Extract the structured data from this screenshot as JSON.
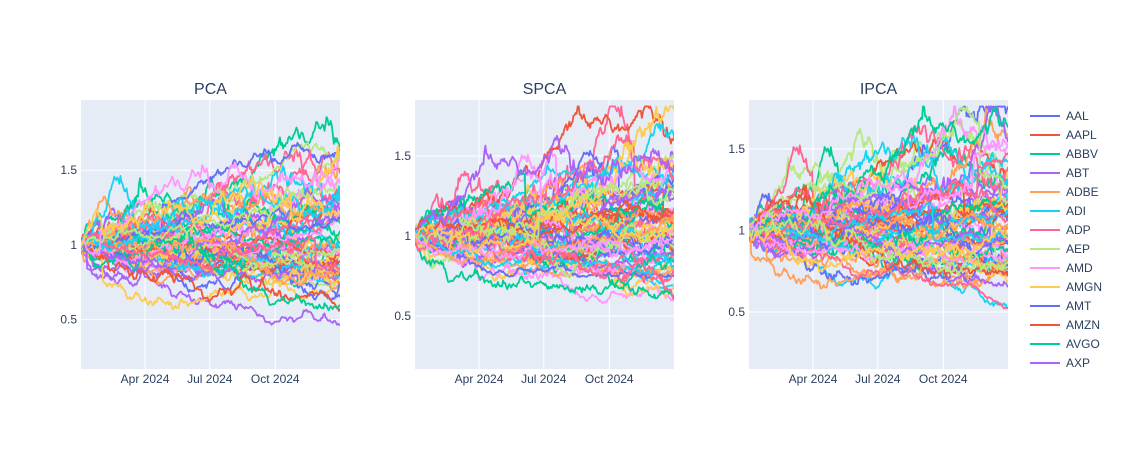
{
  "chart_data": {
    "type": "line",
    "subplots": [
      {
        "title": "PCA",
        "xticks": [
          "Apr 2024",
          "Jul 2024",
          "Oct 2024"
        ],
        "yticks": [
          "0.5",
          "1",
          "1.5"
        ],
        "ylim": [
          0.17,
          1.97
        ],
        "xlim": [
          "2024-01-02",
          "2024-12-31"
        ]
      },
      {
        "title": "SPCA",
        "xticks": [
          "Apr 2024",
          "Jul 2024",
          "Oct 2024"
        ],
        "yticks": [
          "0.5",
          "1",
          "1.5"
        ],
        "ylim": [
          0.17,
          1.85
        ],
        "xlim": [
          "2024-01-02",
          "2024-12-31"
        ]
      },
      {
        "title": "IPCA",
        "xticks": [
          "Apr 2024",
          "Jul 2024",
          "Oct 2024"
        ],
        "yticks": [
          "0.5",
          "1",
          "1.5"
        ],
        "ylim": [
          0.15,
          1.8
        ],
        "xlim": [
          "2024-01-02",
          "2024-12-31"
        ]
      }
    ],
    "legend_position": "right",
    "series": [
      {
        "name": "AAL",
        "color": "#636efa"
      },
      {
        "name": "AAPL",
        "color": "#EF553B"
      },
      {
        "name": "ABBV",
        "color": "#00cc96"
      },
      {
        "name": "ABT",
        "color": "#ab63fa"
      },
      {
        "name": "ADBE",
        "color": "#FFA15A"
      },
      {
        "name": "ADI",
        "color": "#19d3f3"
      },
      {
        "name": "ADP",
        "color": "#FF6692"
      },
      {
        "name": "AEP",
        "color": "#B6E880"
      },
      {
        "name": "AMD",
        "color": "#FF97FF"
      },
      {
        "name": "AMGN",
        "color": "#FECB52"
      },
      {
        "name": "AMT",
        "color": "#636efa"
      },
      {
        "name": "AMZN",
        "color": "#EF553B"
      },
      {
        "name": "AVGO",
        "color": "#00cc96"
      },
      {
        "name": "AXP",
        "color": "#ab63fa"
      }
    ],
    "palette": [
      "#636efa",
      "#EF553B",
      "#00cc96",
      "#ab63fa",
      "#FFA15A",
      "#19d3f3",
      "#FF6692",
      "#B6E880",
      "#FF97FF",
      "#FECB52"
    ],
    "grid": true
  }
}
